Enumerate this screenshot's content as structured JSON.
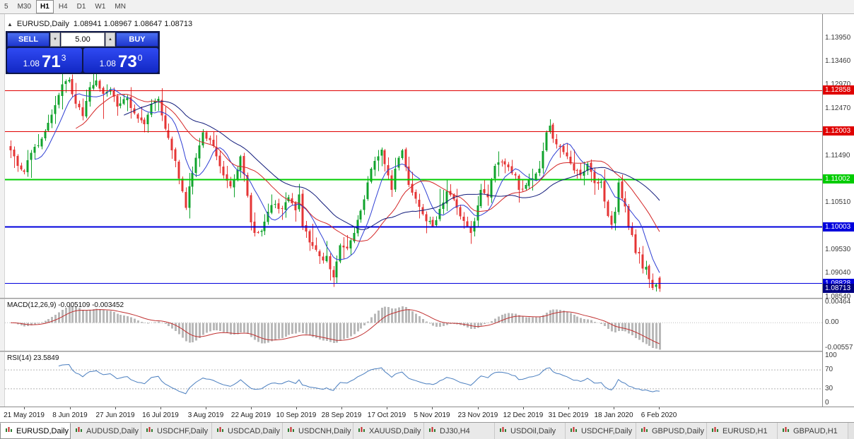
{
  "toolbar": {
    "timeframes": [
      {
        "label": "5",
        "active": false
      },
      {
        "label": "M30",
        "active": false
      },
      {
        "label": "H1",
        "active": true
      },
      {
        "label": "H4",
        "active": false
      },
      {
        "label": "D1",
        "active": false
      },
      {
        "label": "W1",
        "active": false
      },
      {
        "label": "MN",
        "active": false
      }
    ]
  },
  "chart_header": {
    "symbol": "EURUSD,Daily",
    "ohlc": "1.08941 1.08967 1.08647 1.08713"
  },
  "trade_panel": {
    "sell_label": "SELL",
    "buy_label": "BUY",
    "volume": "5.00",
    "sell_price": {
      "prefix": "1.08",
      "big": "71",
      "sup": "3"
    },
    "buy_price": {
      "prefix": "1.08",
      "big": "73",
      "sup": "0"
    }
  },
  "price_axis": {
    "ticks": [
      {
        "label": "1.13950",
        "value": 1.1395
      },
      {
        "label": "1.13460",
        "value": 1.1346
      },
      {
        "label": "1.12970",
        "value": 1.1297
      },
      {
        "label": "1.12470",
        "value": 1.1247
      },
      {
        "label": "1.11980",
        "value": 1.1198
      },
      {
        "label": "1.11490",
        "value": 1.1149
      },
      {
        "label": "1.11000",
        "value": 1.11
      },
      {
        "label": "1.10510",
        "value": 1.1051
      },
      {
        "label": "1.10020",
        "value": 1.1002
      },
      {
        "label": "1.09530",
        "value": 1.0953
      },
      {
        "label": "1.09040",
        "value": 1.0904
      },
      {
        "label": "1.08540",
        "value": 1.0854
      }
    ]
  },
  "levels": [
    {
      "label": "1.12858",
      "value": 1.12858,
      "color": "#e00000",
      "width": 1
    },
    {
      "label": "1.12003",
      "value": 1.12003,
      "color": "#e00000",
      "width": 1
    },
    {
      "label": "1.11002",
      "value": 1.11002,
      "color": "#00cc00",
      "width": 2
    },
    {
      "label": "1.10003",
      "value": 1.10003,
      "color": "#0000dd",
      "width": 2
    },
    {
      "label": "1.08828",
      "value": 1.08828,
      "color": "#0000dd",
      "width": 1
    }
  ],
  "current_price_tag": {
    "label": "1.08713",
    "value": 1.08713,
    "color": "#000080"
  },
  "macd_panel": {
    "title": "MACD(12,26,9)",
    "values": "-0.005109 -0.003452",
    "axis": [
      {
        "label": "0.00464",
        "value": 0.00464
      },
      {
        "label": "0.00",
        "value": 0
      },
      {
        "label": "-0.00557",
        "value": -0.00557
      }
    ]
  },
  "rsi_panel": {
    "title": "RSI(14)",
    "value": "23.5849",
    "axis": [
      {
        "label": "100",
        "value": 100
      },
      {
        "label": "70",
        "value": 70
      },
      {
        "label": "30",
        "value": 30
      },
      {
        "label": "0",
        "value": 0
      }
    ],
    "levels": [
      70,
      30
    ]
  },
  "time_axis": {
    "labels": [
      "21 May 2019",
      "8 Jun 2019",
      "27 Jun 2019",
      "16 Jul 2019",
      "3 Aug 2019",
      "22 Aug 2019",
      "10 Sep 2019",
      "28 Sep 2019",
      "17 Oct 2019",
      "5 Nov 2019",
      "23 Nov 2019",
      "12 Dec 2019",
      "31 Dec 2019",
      "18 Jan 2020",
      "6 Feb 2020"
    ]
  },
  "tabs": [
    {
      "label": "EURUSD,Daily",
      "active": true
    },
    {
      "label": "AUDUSD,Daily",
      "active": false
    },
    {
      "label": "USDCHF,Daily",
      "active": false
    },
    {
      "label": "USDCAD,Daily",
      "active": false
    },
    {
      "label": "USDCNH,Daily",
      "active": false
    },
    {
      "label": "XAUUSD,Daily",
      "active": false
    },
    {
      "label": "DJ30,H4",
      "active": false
    },
    {
      "label": "USDOil,Daily",
      "active": false
    },
    {
      "label": "USDCHF,Daily",
      "active": false
    },
    {
      "label": "GBPUSD,Daily",
      "active": false
    },
    {
      "label": "EURUSD,H1",
      "active": false
    },
    {
      "label": "GBPAUD,H1",
      "active": false
    }
  ],
  "chart_data": {
    "type": "candlestick",
    "symbol": "EURUSD",
    "timeframe": "Daily",
    "bars": 190,
    "price_max": 1.1445,
    "price_min": 1.0852,
    "last_candle": {
      "open": 1.08941,
      "high": 1.08967,
      "low": 1.08647,
      "close": 1.08713
    },
    "up_color": "#10a32c",
    "down_color": "#e53535",
    "moving_averages": [
      {
        "period": 8,
        "color": "#2f3fd4"
      },
      {
        "period": 20,
        "color": "#d42626"
      },
      {
        "period": 34,
        "color": "#101a7a"
      }
    ],
    "macd": {
      "fast": 12,
      "slow": 26,
      "signal": 9,
      "hist_color": "#b9b9b9",
      "signal_color": "#c03030",
      "range": [
        -0.0062,
        0.0052
      ]
    },
    "rsi": {
      "period": 14,
      "color": "#4a7ebf",
      "range": [
        0,
        100
      ]
    },
    "close_anchors": [
      [
        0,
        1.116
      ],
      [
        2,
        1.1128
      ],
      [
        4,
        1.1115
      ],
      [
        6,
        1.1155
      ],
      [
        9,
        1.1185
      ],
      [
        12,
        1.1235
      ],
      [
        15,
        1.1298
      ],
      [
        17,
        1.1308
      ],
      [
        19,
        1.1258
      ],
      [
        21,
        1.1232
      ],
      [
        23,
        1.1292
      ],
      [
        25,
        1.1306
      ],
      [
        27,
        1.1278
      ],
      [
        29,
        1.1288
      ],
      [
        31,
        1.1252
      ],
      [
        34,
        1.127
      ],
      [
        36,
        1.1238
      ],
      [
        39,
        1.1215
      ],
      [
        41,
        1.1258
      ],
      [
        43,
        1.1268
      ],
      [
        45,
        1.1205
      ],
      [
        48,
        1.1138
      ],
      [
        50,
        1.1075
      ],
      [
        51,
        1.104
      ],
      [
        52,
        1.1085
      ],
      [
        54,
        1.1145
      ],
      [
        56,
        1.1198
      ],
      [
        58,
        1.1182
      ],
      [
        60,
        1.1148
      ],
      [
        62,
        1.1108
      ],
      [
        64,
        1.1085
      ],
      [
        66,
        1.112
      ],
      [
        67,
        1.1148
      ],
      [
        69,
        1.1065
      ],
      [
        70,
        1.101
      ],
      [
        71,
        1.0988
      ],
      [
        73,
        1.0992
      ],
      [
        75,
        1.1032
      ],
      [
        77,
        1.1048
      ],
      [
        79,
        1.1038
      ],
      [
        81,
        1.1062
      ],
      [
        83,
        1.1035
      ],
      [
        84,
        1.1068
      ],
      [
        85,
        1.1002
      ],
      [
        87,
        1.0968
      ],
      [
        89,
        1.0952
      ],
      [
        91,
        1.093
      ],
      [
        92,
        1.094
      ],
      [
        93,
        1.0912
      ],
      [
        94,
        1.0895
      ],
      [
        95,
        1.0928
      ],
      [
        96,
        1.0962
      ],
      [
        98,
        1.0955
      ],
      [
        100,
        1.0988
      ],
      [
        101,
        1.1015
      ],
      [
        103,
        1.1058
      ],
      [
        105,
        1.1122
      ],
      [
        107,
        1.1148
      ],
      [
        108,
        1.1162
      ],
      [
        110,
        1.1108
      ],
      [
        111,
        1.1078
      ],
      [
        112,
        1.1122
      ],
      [
        114,
        1.116
      ],
      [
        115,
        1.1125
      ],
      [
        116,
        1.1088
      ],
      [
        117,
        1.1072
      ],
      [
        119,
        1.1042
      ],
      [
        121,
        1.1012
      ],
      [
        123,
        1.1002
      ],
      [
        125,
        1.1038
      ],
      [
        127,
        1.1075
      ],
      [
        129,
        1.1058
      ],
      [
        131,
        1.1022
      ],
      [
        133,
        1.1002
      ],
      [
        134,
        1.0988
      ],
      [
        136,
        1.1045
      ],
      [
        137,
        1.1078
      ],
      [
        139,
        1.1062
      ],
      [
        141,
        1.1128
      ],
      [
        143,
        1.1135
      ],
      [
        145,
        1.1125
      ],
      [
        147,
        1.1108
      ],
      [
        148,
        1.1078
      ],
      [
        150,
        1.1088
      ],
      [
        152,
        1.1102
      ],
      [
        154,
        1.1122
      ],
      [
        156,
        1.1198
      ],
      [
        157,
        1.1212
      ],
      [
        158,
        1.1185
      ],
      [
        160,
        1.1168
      ],
      [
        162,
        1.1148
      ],
      [
        164,
        1.1118
      ],
      [
        166,
        1.1108
      ],
      [
        168,
        1.1132
      ],
      [
        170,
        1.1092
      ],
      [
        172,
        1.1095
      ],
      [
        174,
        1.1023
      ],
      [
        175,
        1.1005
      ],
      [
        176,
        1.1032
      ],
      [
        177,
        1.1093
      ],
      [
        178,
        1.106
      ],
      [
        179,
        1.1043
      ],
      [
        180,
        1.0999
      ],
      [
        181,
        1.0983
      ],
      [
        182,
        1.0946
      ],
      [
        183,
        1.0945
      ],
      [
        184,
        1.0913
      ],
      [
        185,
        1.0917
      ],
      [
        186,
        1.0891
      ],
      [
        187,
        1.0873
      ],
      [
        188,
        1.088
      ],
      [
        189,
        1.08713
      ]
    ]
  }
}
